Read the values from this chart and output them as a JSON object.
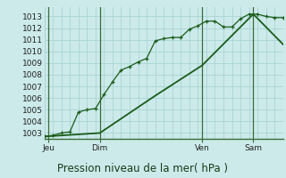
{
  "title": "Pression niveau de la mer( hPa )",
  "ylabel_values": [
    1003,
    1004,
    1005,
    1006,
    1007,
    1008,
    1009,
    1010,
    1011,
    1012,
    1013
  ],
  "ylim": [
    1002.5,
    1013.8
  ],
  "bg_color": "#cceaea",
  "grid_color": "#aad4d4",
  "line_color": "#1a5c1a",
  "day_labels": [
    "Jeu",
    "Dim",
    "Ven",
    "Sam"
  ],
  "day_positions": [
    0.5,
    6.5,
    18.5,
    24.5
  ],
  "day_vlines": [
    0.5,
    6.5,
    18.5,
    24.5
  ],
  "line1_x": [
    0,
    1,
    2,
    3,
    4,
    5,
    6,
    7,
    8,
    9,
    10,
    11,
    12,
    13,
    14,
    15,
    16,
    17,
    18,
    19,
    20,
    21,
    22,
    23,
    24,
    25,
    26,
    27,
    28
  ],
  "line1_y": [
    1002.7,
    1002.8,
    1003.0,
    1003.1,
    1004.8,
    1005.0,
    1005.1,
    1006.3,
    1007.4,
    1008.4,
    1008.7,
    1009.1,
    1009.4,
    1010.9,
    1011.1,
    1011.2,
    1011.2,
    1011.9,
    1012.2,
    1012.6,
    1012.6,
    1012.1,
    1012.1,
    1012.8,
    1013.2,
    1013.2,
    1013.0,
    1012.9,
    1012.9
  ],
  "line2_x": [
    0,
    6.5,
    13,
    18.5,
    24.5,
    28
  ],
  "line2_y": [
    1002.7,
    1003.0,
    1006.2,
    1008.8,
    1013.2,
    1010.6
  ],
  "xlim": [
    0,
    28
  ],
  "title_fontsize": 8.5,
  "tick_fontsize": 6.5
}
